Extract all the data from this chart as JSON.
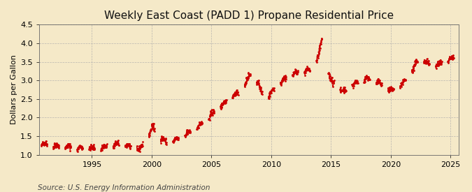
{
  "title": "Weekly East Coast (PADD 1) Propane Residential Price",
  "ylabel": "Dollars per Gallon",
  "source": "Source: U.S. Energy Information Administration",
  "ylim": [
    1.0,
    4.5
  ],
  "yticks": [
    1.0,
    1.5,
    2.0,
    2.5,
    3.0,
    3.5,
    4.0,
    4.5
  ],
  "xticks": [
    1995,
    2000,
    2005,
    2010,
    2015,
    2020,
    2025
  ],
  "background_color": "#f5e9c8",
  "plot_bg_color": "#f5e9c8",
  "line_color": "#cc0000",
  "grid_color": "#aaaaaa",
  "title_fontsize": 11,
  "label_fontsize": 8,
  "tick_fontsize": 8,
  "source_fontsize": 7.5
}
